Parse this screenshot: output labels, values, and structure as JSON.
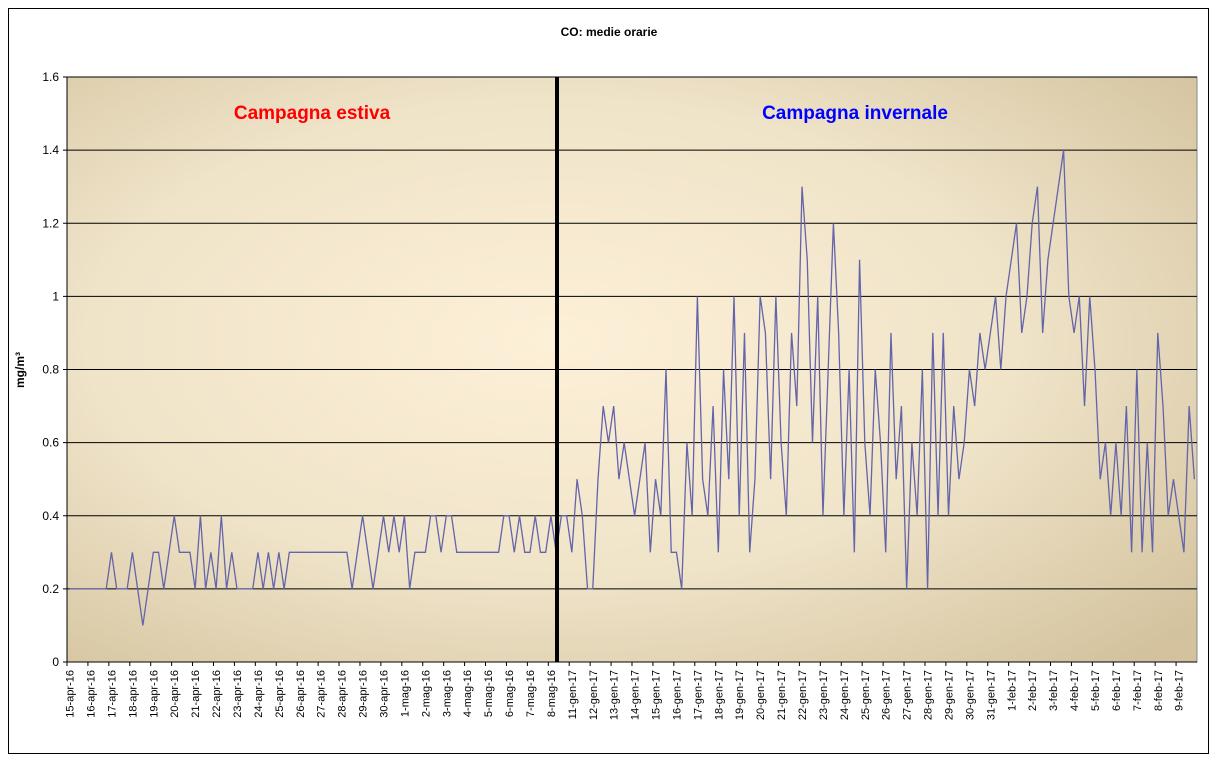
{
  "chart_data": {
    "type": "line",
    "title": "CO: medie orarie",
    "y_label": "mg/m³",
    "annotations": [
      {
        "text": "Campagna estiva",
        "color": "#ff0000"
      },
      {
        "text": "Campagna invernale",
        "color": "#0000ff"
      }
    ],
    "categories": [
      "15-apr-16",
      null,
      null,
      null,
      "16-apr-16",
      null,
      null,
      null,
      "17-apr-16",
      null,
      null,
      null,
      "18-apr-16",
      null,
      null,
      null,
      "19-apr-16",
      null,
      null,
      null,
      "20-apr-16",
      null,
      null,
      null,
      "21-apr-16",
      null,
      null,
      null,
      "22-apr-16",
      null,
      null,
      null,
      "23-apr-16",
      null,
      null,
      null,
      "24-apr-16",
      null,
      null,
      null,
      "25-apr-16",
      null,
      null,
      null,
      "26-apr-16",
      null,
      null,
      null,
      "27-apr-16",
      null,
      null,
      null,
      "28-apr-16",
      null,
      null,
      null,
      "29-apr-16",
      null,
      null,
      null,
      "30-apr-16",
      null,
      null,
      null,
      "1-mag-16",
      null,
      null,
      null,
      "2-mag-16",
      null,
      null,
      null,
      "3-mag-16",
      null,
      null,
      null,
      "4-mag-16",
      null,
      null,
      null,
      "5-mag-16",
      null,
      null,
      null,
      "6-mag-16",
      null,
      null,
      null,
      "7-mag-16",
      null,
      null,
      null,
      "8-mag-16",
      null,
      null,
      null,
      "11-gen-17",
      null,
      null,
      null,
      "12-gen-17",
      null,
      null,
      null,
      "13-gen-17",
      null,
      null,
      null,
      "14-gen-17",
      null,
      null,
      null,
      "15-gen-17",
      null,
      null,
      null,
      "16-gen-17",
      null,
      null,
      null,
      "17-gen-17",
      null,
      null,
      null,
      "18-gen-17",
      null,
      null,
      null,
      "19-gen-17",
      null,
      null,
      null,
      "20-gen-17",
      null,
      null,
      null,
      "21-gen-17",
      null,
      null,
      null,
      "22-gen-17",
      null,
      null,
      null,
      "23-gen-17",
      null,
      null,
      null,
      "24-gen-17",
      null,
      null,
      null,
      "25-gen-17",
      null,
      null,
      null,
      "26-gen-17",
      null,
      null,
      null,
      "27-gen-17",
      null,
      null,
      null,
      "28-gen-17",
      null,
      null,
      null,
      "29-gen-17",
      null,
      null,
      null,
      "30-gen-17",
      null,
      null,
      null,
      "31-gen-17",
      null,
      null,
      null,
      "1-feb-17",
      null,
      null,
      null,
      "2-feb-17",
      null,
      null,
      null,
      "3-feb-17",
      null,
      null,
      null,
      "4-feb-17",
      null,
      null,
      null,
      "5-feb-17",
      null,
      null,
      null,
      "6-feb-17",
      null,
      null,
      null,
      "7-feb-17",
      null,
      null,
      null,
      "8-feb-17",
      null,
      null,
      null,
      "9-feb-17",
      null,
      null,
      null
    ],
    "series": [
      {
        "name": "CO",
        "color": "#6464aa",
        "values": [
          0.2,
          0.2,
          0.2,
          0.2,
          0.2,
          0.2,
          0.2,
          0.2,
          0.3,
          0.2,
          0.2,
          0.2,
          0.3,
          0.2,
          0.1,
          0.2,
          0.3,
          0.3,
          0.2,
          0.3,
          0.4,
          0.3,
          0.3,
          0.3,
          0.2,
          0.4,
          0.2,
          0.3,
          0.2,
          0.4,
          0.2,
          0.3,
          0.2,
          0.2,
          0.2,
          0.2,
          0.3,
          0.2,
          0.3,
          0.2,
          0.3,
          0.2,
          0.3,
          0.3,
          0.3,
          0.3,
          0.3,
          0.3,
          0.3,
          0.3,
          0.3,
          0.3,
          0.3,
          0.3,
          0.2,
          0.3,
          0.4,
          0.3,
          0.2,
          0.3,
          0.4,
          0.3,
          0.4,
          0.3,
          0.4,
          0.2,
          0.3,
          0.3,
          0.3,
          0.4,
          0.4,
          0.3,
          0.4,
          0.4,
          0.3,
          0.3,
          0.3,
          0.3,
          0.3,
          0.3,
          0.3,
          0.3,
          0.3,
          0.4,
          0.4,
          0.3,
          0.4,
          0.3,
          0.3,
          0.4,
          0.3,
          0.3,
          0.4,
          0.3,
          0.4,
          0.4,
          0.3,
          0.5,
          0.4,
          0.2,
          0.2,
          0.5,
          0.7,
          0.6,
          0.7,
          0.5,
          0.6,
          0.5,
          0.4,
          0.5,
          0.6,
          0.3,
          0.5,
          0.4,
          0.8,
          0.3,
          0.3,
          0.2,
          0.6,
          0.4,
          1.0,
          0.5,
          0.4,
          0.7,
          0.3,
          0.8,
          0.5,
          1.0,
          0.4,
          0.9,
          0.3,
          0.5,
          1.0,
          0.9,
          0.5,
          1.0,
          0.6,
          0.4,
          0.9,
          0.7,
          1.3,
          1.1,
          0.6,
          1.0,
          0.4,
          0.8,
          1.2,
          0.9,
          0.4,
          0.8,
          0.3,
          1.1,
          0.6,
          0.4,
          0.8,
          0.6,
          0.3,
          0.9,
          0.5,
          0.7,
          0.2,
          0.6,
          0.4,
          0.8,
          0.2,
          0.9,
          0.4,
          0.9,
          0.4,
          0.7,
          0.5,
          0.6,
          0.8,
          0.7,
          0.9,
          0.8,
          0.9,
          1.0,
          0.8,
          1.0,
          1.1,
          1.2,
          0.9,
          1.0,
          1.2,
          1.3,
          0.9,
          1.1,
          1.2,
          1.3,
          1.4,
          1.0,
          0.9,
          1.0,
          0.7,
          1.0,
          0.8,
          0.5,
          0.6,
          0.4,
          0.6,
          0.4,
          0.7,
          0.3,
          0.8,
          0.3,
          0.6,
          0.3,
          0.9,
          0.7,
          0.4,
          0.5,
          0.4,
          0.3,
          0.7,
          0.5
        ]
      }
    ],
    "ylim": [
      0,
      1.6
    ],
    "yticks": [
      0,
      0.2,
      0.4,
      0.6,
      0.8,
      1,
      1.2,
      1.4,
      1.6
    ],
    "grid": true
  }
}
